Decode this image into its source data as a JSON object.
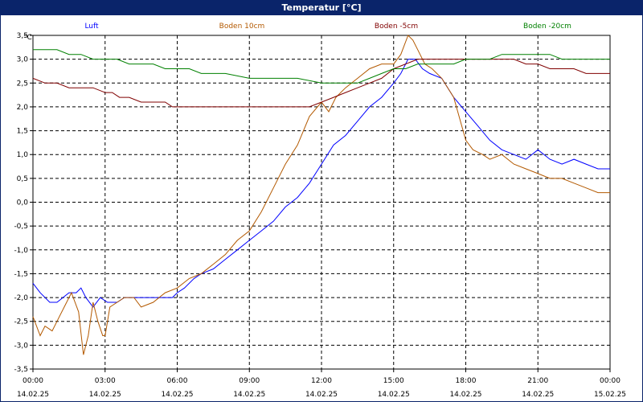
{
  "window": {
    "title": "Temperatur [°C]"
  },
  "chart_data": {
    "type": "line",
    "title": "Temperatur [°C]",
    "ylabel": "°C",
    "ylim": [
      -3.5,
      3.5
    ],
    "y_ticks": [
      "3,5",
      "3,0",
      "2,5",
      "2,0",
      "1,5",
      "1,0",
      "0,5",
      "0,0",
      "-0,5",
      "-1,0",
      "-1,5",
      "-2,0",
      "-2,5",
      "-3,0",
      "-3,5"
    ],
    "y_tick_values": [
      3.5,
      3.0,
      2.5,
      2.0,
      1.5,
      1.0,
      0.5,
      0.0,
      -0.5,
      -1.0,
      -1.5,
      -2.0,
      -2.5,
      -3.0,
      -3.5
    ],
    "xlim": [
      0,
      24
    ],
    "x_ticks": [
      {
        "time": "00:00",
        "date": "14.02.25",
        "h": 0
      },
      {
        "time": "03:00",
        "date": "14.02.25",
        "h": 3
      },
      {
        "time": "06:00",
        "date": "14.02.25",
        "h": 6
      },
      {
        "time": "09:00",
        "date": "14.02.25",
        "h": 9
      },
      {
        "time": "12:00",
        "date": "14.02.25",
        "h": 12
      },
      {
        "time": "15:00",
        "date": "14.02.25",
        "h": 15
      },
      {
        "time": "18:00",
        "date": "14.02.25",
        "h": 18
      },
      {
        "time": "21:00",
        "date": "14.02.25",
        "h": 21
      },
      {
        "time": "00:00",
        "date": "15.02.25",
        "h": 24
      }
    ],
    "grid": true,
    "legend_position": "top",
    "series": [
      {
        "name": "Luft",
        "color": "#0000ff",
        "x": [
          0,
          0.3,
          0.7,
          1.0,
          1.5,
          1.8,
          2.0,
          2.2,
          2.5,
          2.8,
          3.1,
          3.3,
          3.5,
          3.8,
          4.2,
          4.5,
          5.0,
          5.5,
          5.8,
          6.0,
          6.3,
          6.7,
          7.0,
          7.5,
          8.0,
          8.5,
          9.0,
          9.5,
          10.0,
          10.5,
          11.0,
          11.5,
          12.0,
          12.5,
          13.0,
          13.5,
          14.0,
          14.5,
          15.0,
          15.3,
          15.6,
          15.9,
          16.2,
          16.5,
          17.0,
          17.5,
          18.0,
          18.5,
          19.0,
          19.5,
          20.0,
          20.5,
          21.0,
          21.5,
          22.0,
          22.5,
          23.0,
          23.5,
          24.0
        ],
        "y": [
          -1.7,
          -1.9,
          -2.1,
          -2.1,
          -1.9,
          -1.9,
          -1.8,
          -2.0,
          -2.2,
          -2.0,
          -2.1,
          -2.1,
          -2.1,
          -2.0,
          -2.0,
          -2.0,
          -2.0,
          -2.0,
          -2.0,
          -1.9,
          -1.8,
          -1.6,
          -1.5,
          -1.4,
          -1.2,
          -1.0,
          -0.8,
          -0.6,
          -0.4,
          -0.1,
          0.1,
          0.4,
          0.8,
          1.2,
          1.4,
          1.7,
          2.0,
          2.2,
          2.5,
          2.7,
          3.0,
          3.0,
          2.8,
          2.7,
          2.6,
          2.2,
          1.9,
          1.6,
          1.3,
          1.1,
          1.0,
          0.9,
          1.1,
          0.9,
          0.8,
          0.9,
          0.8,
          0.7,
          0.7
        ]
      },
      {
        "name": "Boden 10cm",
        "color": "#b35900",
        "x": [
          0,
          0.3,
          0.5,
          0.8,
          1.0,
          1.3,
          1.6,
          1.9,
          2.1,
          2.3,
          2.5,
          2.7,
          2.9,
          3.0,
          3.2,
          3.5,
          3.8,
          4.2,
          4.5,
          5.0,
          5.5,
          6.0,
          6.5,
          7.0,
          7.5,
          8.0,
          8.5,
          9.0,
          9.5,
          10.0,
          10.5,
          11.0,
          11.5,
          12.0,
          12.3,
          12.6,
          13.0,
          13.5,
          14.0,
          14.5,
          15.0,
          15.3,
          15.6,
          15.8,
          16.0,
          16.3,
          16.6,
          17.0,
          17.5,
          18.0,
          18.3,
          18.7,
          19.0,
          19.5,
          20.0,
          20.5,
          21.0,
          21.5,
          22.0,
          22.5,
          23.0,
          23.5,
          24.0
        ],
        "y": [
          -2.4,
          -2.8,
          -2.6,
          -2.7,
          -2.5,
          -2.2,
          -1.9,
          -2.3,
          -3.2,
          -2.8,
          -2.1,
          -2.5,
          -2.8,
          -2.8,
          -2.2,
          -2.1,
          -2.0,
          -2.0,
          -2.2,
          -2.1,
          -1.9,
          -1.8,
          -1.6,
          -1.5,
          -1.3,
          -1.1,
          -0.8,
          -0.6,
          -0.2,
          0.3,
          0.8,
          1.2,
          1.8,
          2.1,
          1.9,
          2.2,
          2.4,
          2.6,
          2.8,
          2.9,
          2.9,
          3.1,
          3.5,
          3.4,
          3.2,
          2.9,
          2.8,
          2.6,
          2.2,
          1.3,
          1.1,
          1.0,
          0.9,
          1.0,
          0.8,
          0.7,
          0.6,
          0.5,
          0.5,
          0.4,
          0.3,
          0.2,
          0.2
        ]
      },
      {
        "name": "Boden -5cm",
        "color": "#800000",
        "x": [
          0,
          0.5,
          1.0,
          1.5,
          2.0,
          2.5,
          3.0,
          3.3,
          3.6,
          4.0,
          4.5,
          5.0,
          5.5,
          5.8,
          6.0,
          7.0,
          8.0,
          9.0,
          10.0,
          11.0,
          11.5,
          12.0,
          12.5,
          13.0,
          13.5,
          14.0,
          14.5,
          15.0,
          15.5,
          16.0,
          16.5,
          17.0,
          17.5,
          18.0,
          18.5,
          19.0,
          19.5,
          20.0,
          20.5,
          21.0,
          21.5,
          22.0,
          22.5,
          23.0,
          23.5,
          24.0
        ],
        "y": [
          2.6,
          2.5,
          2.5,
          2.4,
          2.4,
          2.4,
          2.3,
          2.3,
          2.2,
          2.2,
          2.1,
          2.1,
          2.1,
          2.0,
          2.0,
          2.0,
          2.0,
          2.0,
          2.0,
          2.0,
          2.0,
          2.1,
          2.2,
          2.3,
          2.4,
          2.5,
          2.6,
          2.8,
          2.9,
          3.0,
          3.0,
          3.0,
          3.0,
          3.0,
          3.0,
          3.0,
          3.0,
          3.0,
          2.9,
          2.9,
          2.8,
          2.8,
          2.8,
          2.7,
          2.7,
          2.7
        ]
      },
      {
        "name": "Boden -20cm",
        "color": "#008000",
        "x": [
          0,
          0.5,
          1.0,
          1.5,
          2.0,
          2.5,
          3.0,
          3.5,
          4.0,
          4.5,
          5.0,
          5.5,
          6.0,
          6.5,
          7.0,
          7.5,
          8.0,
          9.0,
          10.0,
          11.0,
          12.0,
          13.0,
          13.5,
          14.0,
          14.5,
          15.0,
          15.5,
          16.0,
          16.5,
          17.0,
          17.5,
          18.0,
          18.5,
          19.0,
          19.5,
          20.0,
          20.5,
          21.0,
          21.5,
          22.0,
          22.5,
          23.0,
          23.5,
          24.0
        ],
        "y": [
          3.2,
          3.2,
          3.2,
          3.1,
          3.1,
          3.0,
          3.0,
          3.0,
          2.9,
          2.9,
          2.9,
          2.8,
          2.8,
          2.8,
          2.7,
          2.7,
          2.7,
          2.6,
          2.6,
          2.6,
          2.5,
          2.5,
          2.5,
          2.6,
          2.7,
          2.8,
          2.8,
          2.9,
          2.9,
          2.9,
          2.9,
          3.0,
          3.0,
          3.0,
          3.1,
          3.1,
          3.1,
          3.1,
          3.1,
          3.0,
          3.0,
          3.0,
          3.0,
          3.0
        ]
      }
    ]
  }
}
